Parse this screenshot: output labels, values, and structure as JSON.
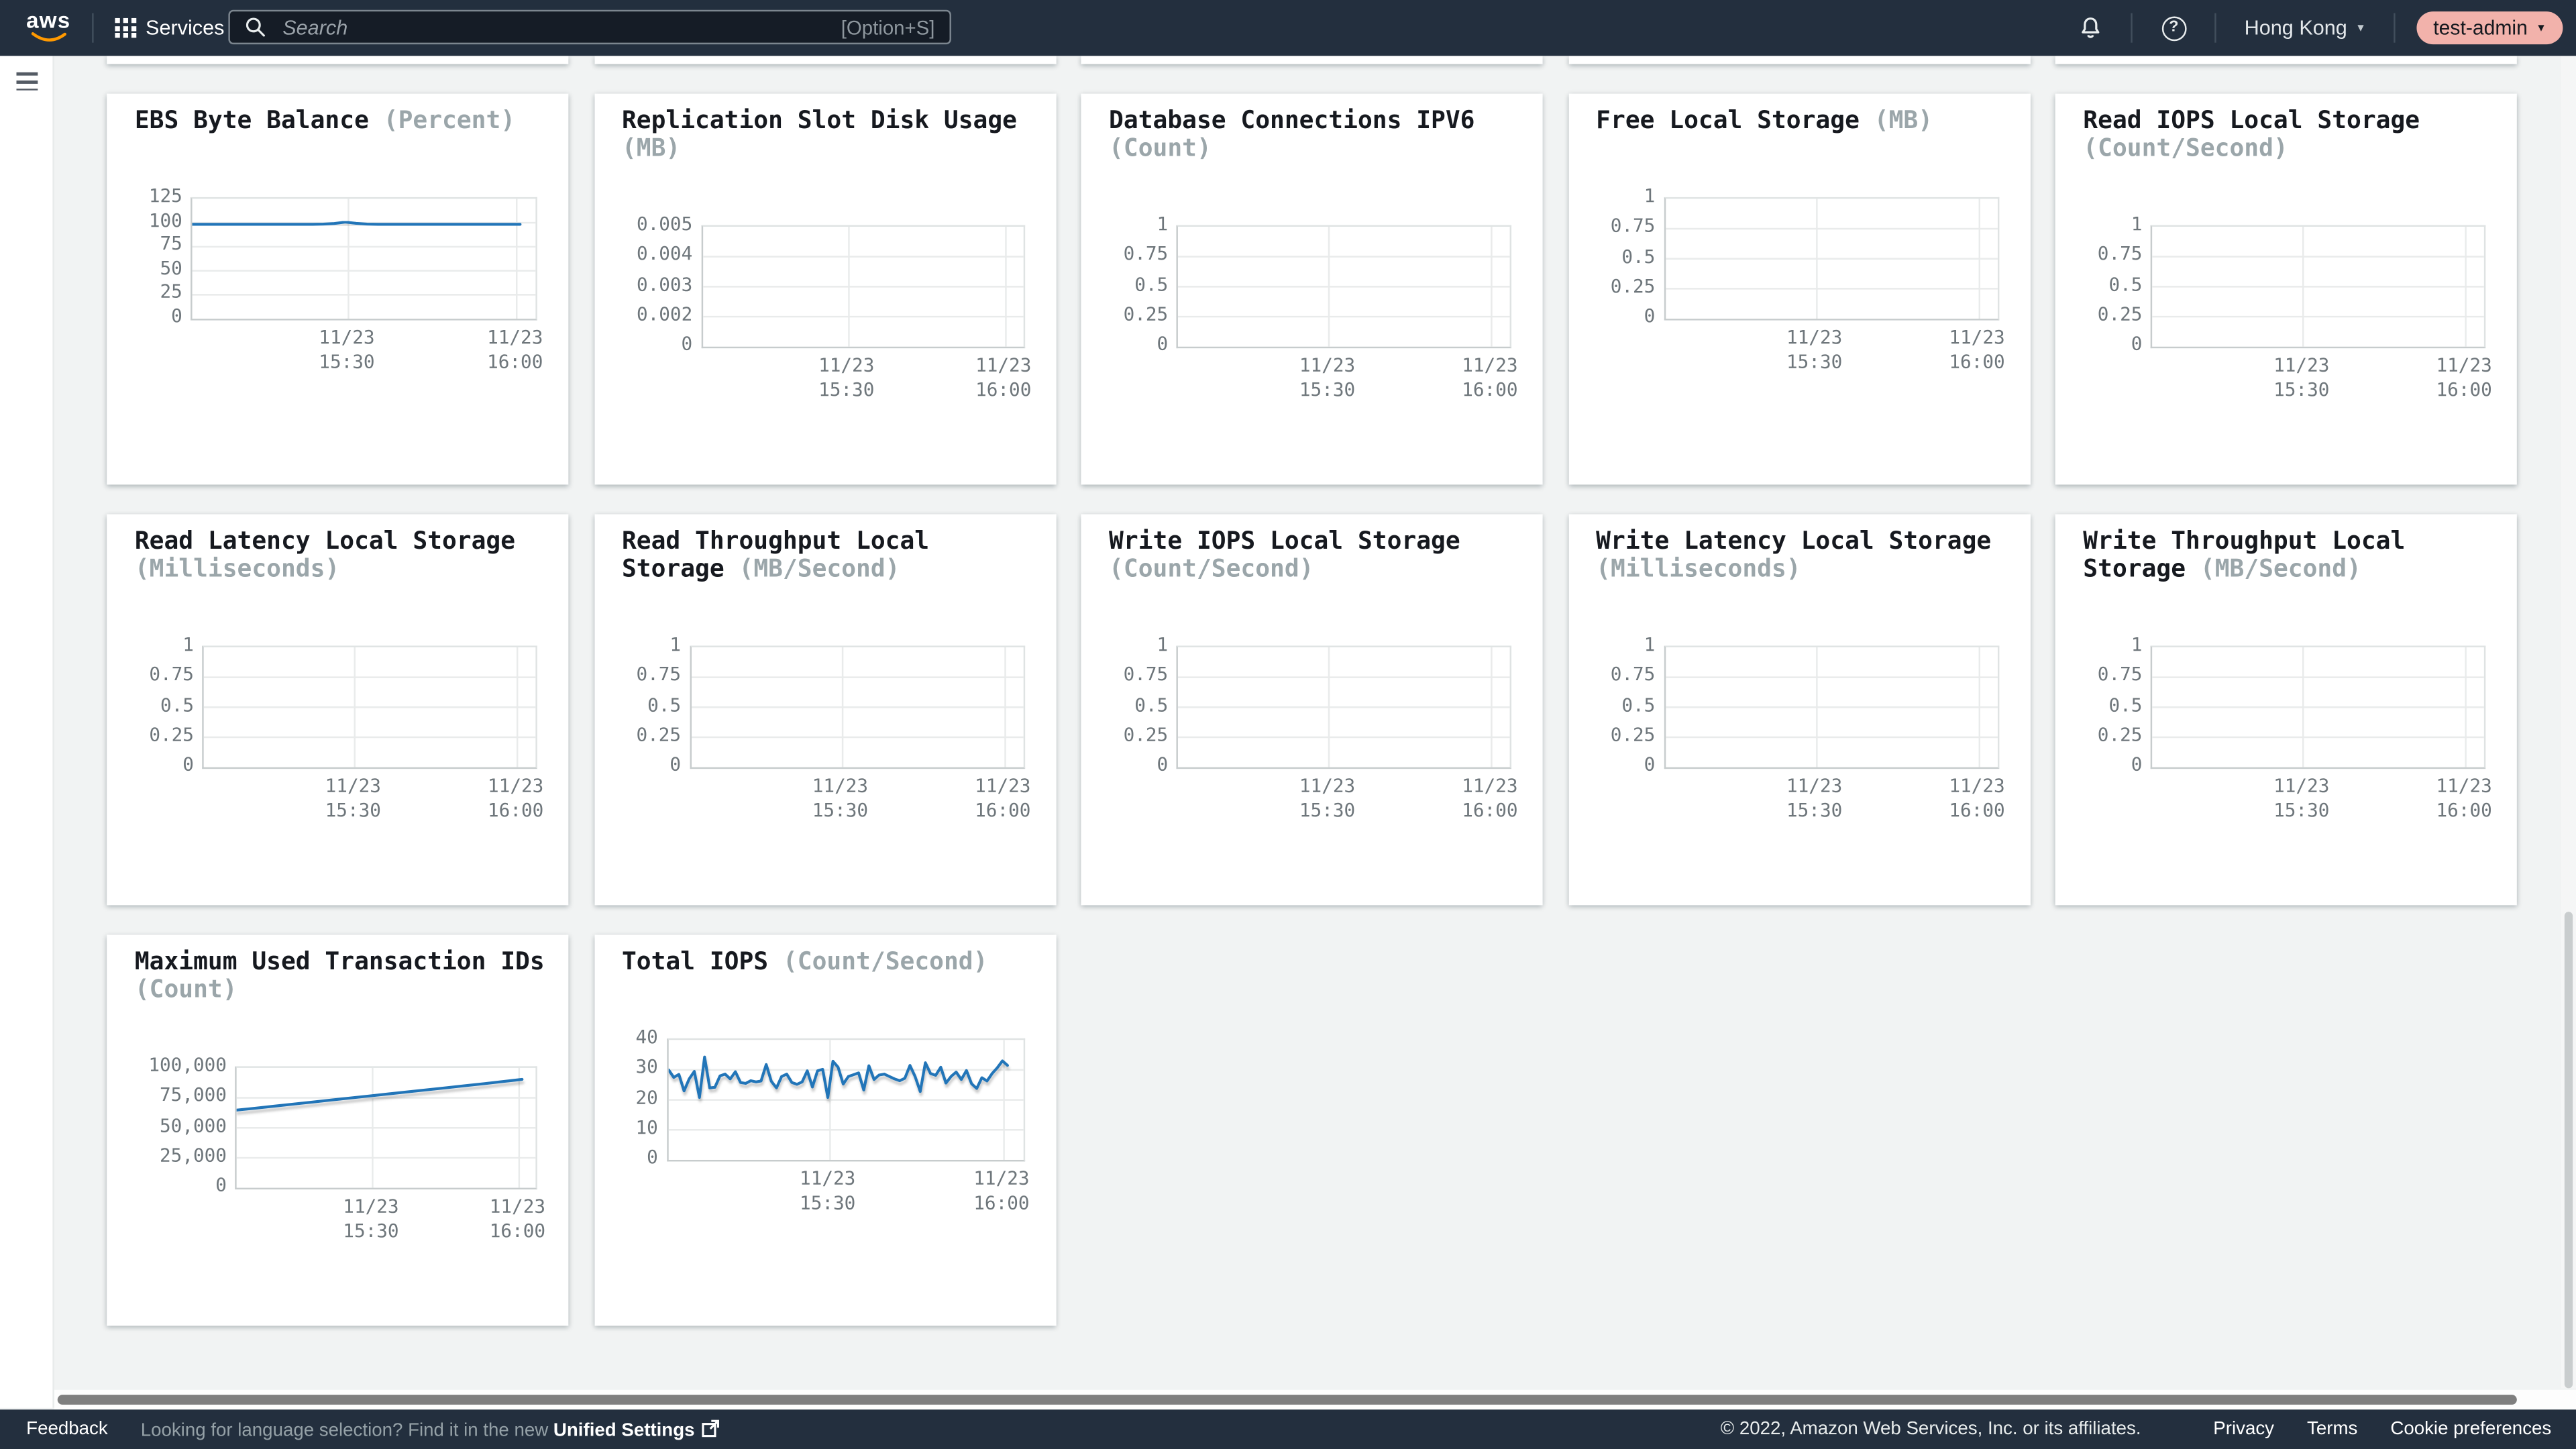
{
  "topnav": {
    "logo": "aws",
    "services_label": "Services",
    "search_placeholder": "Search",
    "search_shortcut": "[Option+S]",
    "region_label": "Hong Kong",
    "account_label": "test-admin"
  },
  "footer": {
    "feedback": "Feedback",
    "language_hint": "Looking for language selection? Find it in the new ",
    "unified_settings": "Unified Settings",
    "copyright": "© 2022, Amazon Web Services, Inc. or its affiliates.",
    "privacy": "Privacy",
    "terms": "Terms",
    "cookie_preferences": "Cookie preferences"
  },
  "colors": {
    "accent_blue": "#2074b8",
    "nav_bg": "#232f3e",
    "page_bg": "#f1f3f3",
    "account_pill_bg": "#f2b2ab",
    "grid_line": "#e9ebeb"
  },
  "chart_data": [
    {
      "type": "line",
      "title": "EBS Byte Balance",
      "unit": "(Percent)",
      "ytick_labels": [
        "125",
        "100",
        "75",
        "50",
        "25",
        "0"
      ],
      "ytick_values": [
        125,
        100,
        75,
        50,
        25,
        0
      ],
      "ylim": [
        0,
        125
      ],
      "grid": true,
      "legend": "none",
      "x_tick_labels": [
        [
          "11/23",
          "15:30"
        ],
        [
          "11/23",
          "16:00"
        ]
      ],
      "values": [
        98.4,
        98.4,
        98.4,
        98.4,
        98.4,
        98.4,
        98.4,
        98.4,
        98.4,
        98.4,
        98.4,
        98.4,
        98.6,
        99.2,
        100.7,
        99.4,
        98.6,
        98.4,
        98.4,
        98.4,
        98.4,
        98.4,
        98.4,
        98.4,
        98.4,
        98.4,
        98.4,
        98.4,
        98.4,
        98.4,
        98.4
      ]
    },
    {
      "type": "line",
      "title": "Replication Slot Disk Usage",
      "unit": "(MB)",
      "ytick_labels": [
        "0.005",
        "0.004",
        "0.003",
        "0.002",
        "0"
      ],
      "ytick_values": [
        0.005,
        0.004,
        0.003,
        0.002,
        0
      ],
      "ylim": [
        0,
        0.005
      ],
      "grid": true,
      "legend": "none",
      "x_tick_labels": [
        [
          "11/23",
          "15:30"
        ],
        [
          "11/23",
          "16:00"
        ]
      ],
      "values": [
        0.00495,
        0.00495,
        0.00495,
        0.00495,
        0.00495,
        0.00495,
        0.00495,
        0.00495,
        0.00495,
        0.00495,
        0.00495,
        0.00495,
        0.00495,
        0.00495,
        0.00495,
        0.00495,
        0.00495,
        0.00495,
        0.00495,
        0.00495,
        0.00495,
        0.00495,
        0.00495,
        0.00495,
        0.00495,
        0.00495,
        0.00495,
        0.00495,
        0.00495,
        0.00495,
        0.00495
      ]
    },
    {
      "type": "line",
      "title": "Database Connections IPV6",
      "unit": "(Count)",
      "ytick_labels": [
        "1",
        "0.75",
        "0.5",
        "0.25",
        "0"
      ],
      "ytick_values": [
        1,
        0.75,
        0.5,
        0.25,
        0
      ],
      "ylim": [
        0,
        1
      ],
      "grid": true,
      "legend": "none",
      "x_tick_labels": [
        [
          "11/23",
          "15:30"
        ],
        [
          "11/23",
          "16:00"
        ]
      ],
      "values": []
    },
    {
      "type": "line",
      "title": "Free Local Storage",
      "unit": "(MB)",
      "ytick_labels": [
        "1",
        "0.75",
        "0.5",
        "0.25",
        "0"
      ],
      "ytick_values": [
        1,
        0.75,
        0.5,
        0.25,
        0
      ],
      "ylim": [
        0,
        1
      ],
      "grid": true,
      "legend": "none",
      "x_tick_labels": [
        [
          "11/23",
          "15:30"
        ],
        [
          "11/23",
          "16:00"
        ]
      ],
      "values": []
    },
    {
      "type": "line",
      "title": "Read IOPS Local Storage",
      "unit": "(Count/Second)",
      "ytick_labels": [
        "1",
        "0.75",
        "0.5",
        "0.25",
        "0"
      ],
      "ytick_values": [
        1,
        0.75,
        0.5,
        0.25,
        0
      ],
      "ylim": [
        0,
        1
      ],
      "grid": true,
      "legend": "none",
      "x_tick_labels": [
        [
          "11/23",
          "15:30"
        ],
        [
          "11/23",
          "16:00"
        ]
      ],
      "values": []
    },
    {
      "type": "line",
      "title": "Read Latency Local Storage",
      "unit": "(Milliseconds)",
      "ytick_labels": [
        "1",
        "0.75",
        "0.5",
        "0.25",
        "0"
      ],
      "ytick_values": [
        1,
        0.75,
        0.5,
        0.25,
        0
      ],
      "ylim": [
        0,
        1
      ],
      "grid": true,
      "legend": "none",
      "x_tick_labels": [
        [
          "11/23",
          "15:30"
        ],
        [
          "11/23",
          "16:00"
        ]
      ],
      "values": []
    },
    {
      "type": "line",
      "title": "Read Throughput Local Storage",
      "unit": "(MB/Second)",
      "ytick_labels": [
        "1",
        "0.75",
        "0.5",
        "0.25",
        "0"
      ],
      "ytick_values": [
        1,
        0.75,
        0.5,
        0.25,
        0
      ],
      "ylim": [
        0,
        1
      ],
      "grid": true,
      "legend": "none",
      "x_tick_labels": [
        [
          "11/23",
          "15:30"
        ],
        [
          "11/23",
          "16:00"
        ]
      ],
      "values": []
    },
    {
      "type": "line",
      "title": "Write IOPS Local Storage",
      "unit": "(Count/Second)",
      "ytick_labels": [
        "1",
        "0.75",
        "0.5",
        "0.25",
        "0"
      ],
      "ytick_values": [
        1,
        0.75,
        0.5,
        0.25,
        0
      ],
      "ylim": [
        0,
        1
      ],
      "grid": true,
      "legend": "none",
      "x_tick_labels": [
        [
          "11/23",
          "15:30"
        ],
        [
          "11/23",
          "16:00"
        ]
      ],
      "values": []
    },
    {
      "type": "line",
      "title": "Write Latency Local Storage",
      "unit": "(Milliseconds)",
      "ytick_labels": [
        "1",
        "0.75",
        "0.5",
        "0.25",
        "0"
      ],
      "ytick_values": [
        1,
        0.75,
        0.5,
        0.25,
        0
      ],
      "ylim": [
        0,
        1
      ],
      "grid": true,
      "legend": "none",
      "x_tick_labels": [
        [
          "11/23",
          "15:30"
        ],
        [
          "11/23",
          "16:00"
        ]
      ],
      "values": []
    },
    {
      "type": "line",
      "title": "Write Throughput Local Storage",
      "unit": "(MB/Second)",
      "ytick_labels": [
        "1",
        "0.75",
        "0.5",
        "0.25",
        "0"
      ],
      "ytick_values": [
        1,
        0.75,
        0.5,
        0.25,
        0
      ],
      "ylim": [
        0,
        1
      ],
      "grid": true,
      "legend": "none",
      "x_tick_labels": [
        [
          "11/23",
          "15:30"
        ],
        [
          "11/23",
          "16:00"
        ]
      ],
      "values": []
    },
    {
      "type": "line",
      "title": "Maximum Used Transaction IDs",
      "unit": "(Count)",
      "ytick_labels": [
        "100,000",
        "75,000",
        "50,000",
        "25,000",
        "0"
      ],
      "ytick_values": [
        100000,
        75000,
        50000,
        25000,
        0
      ],
      "ylim": [
        0,
        100000
      ],
      "grid": true,
      "legend": "none",
      "x_tick_labels": [
        [
          "11/23",
          "15:30"
        ],
        [
          "11/23",
          "16:00"
        ]
      ],
      "values": [
        64800,
        66400,
        68100,
        69800,
        71500,
        73200,
        74900,
        76600,
        78300,
        80000,
        81700,
        83400,
        85100,
        86800,
        88600,
        90400
      ]
    },
    {
      "type": "line",
      "title": "Total IOPS",
      "unit": "(Count/Second)",
      "ytick_labels": [
        "40",
        "30",
        "20",
        "10",
        "0"
      ],
      "ytick_values": [
        40,
        30,
        20,
        10,
        0
      ],
      "ylim": [
        0,
        40
      ],
      "grid": true,
      "legend": "none",
      "x_tick_labels": [
        [
          "11/23",
          "15:30"
        ],
        [
          "11/23",
          "16:00"
        ]
      ],
      "values": [
        30,
        27.5,
        28.5,
        23,
        27,
        29.5,
        20.8,
        34.3,
        24,
        24.2,
        28,
        28.6,
        27,
        29.4,
        25.8,
        25.5,
        26.4,
        26,
        26.3,
        31.8,
        26.2,
        24,
        27.8,
        28.6,
        25.8,
        25.2,
        26,
        29.7,
        24.3,
        29.7,
        30.2,
        20.8,
        32.9,
        30.9,
        25.3,
        27.8,
        28.4,
        29,
        23.3,
        31.4,
        26.8,
        28.3,
        28.6,
        27.8,
        27,
        26.4,
        27.2,
        31.5,
        27.8,
        22.8,
        32.4,
        28.8,
        28.2,
        30.9,
        25.6,
        27.8,
        29.3,
        26.8,
        29.8,
        25.4,
        23.8,
        27.4,
        26.3,
        28.8,
        30.7,
        33,
        31.5
      ]
    }
  ]
}
